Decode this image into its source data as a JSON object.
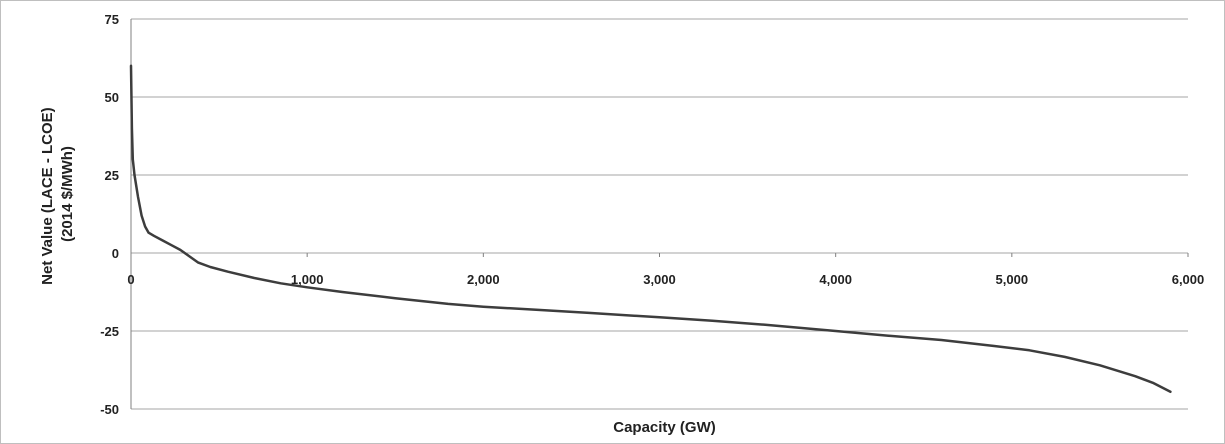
{
  "chart_data": {
    "type": "line",
    "xlabel": "Capacity (GW)",
    "ylabel_lines": [
      "Net Value  (LACE - LCOE)",
      "(2014 $/MWh)"
    ],
    "xlim": [
      0,
      6000
    ],
    "ylim": [
      -50,
      75
    ],
    "x_ticks": [
      0,
      1000,
      2000,
      3000,
      4000,
      5000,
      6000
    ],
    "x_tick_labels": [
      "0",
      "1,000",
      "2,000",
      "3,000",
      "4,000",
      "5,000",
      "6,000"
    ],
    "y_ticks": [
      -50,
      -25,
      0,
      25,
      50,
      75
    ],
    "y_tick_labels": [
      "-50",
      "-25",
      "0",
      "25",
      "50",
      "75"
    ],
    "grid": true,
    "legend": "none",
    "series": [
      {
        "color": "#3d3d3d",
        "points": [
          [
            0,
            60
          ],
          [
            5,
            40
          ],
          [
            10,
            30
          ],
          [
            20,
            25
          ],
          [
            40,
            18
          ],
          [
            60,
            12
          ],
          [
            80,
            8.5
          ],
          [
            100,
            6.5
          ],
          [
            130,
            5.5
          ],
          [
            180,
            4
          ],
          [
            230,
            2.5
          ],
          [
            280,
            1
          ],
          [
            330,
            -1
          ],
          [
            380,
            -3
          ],
          [
            450,
            -4.5
          ],
          [
            550,
            -6
          ],
          [
            700,
            -8
          ],
          [
            850,
            -9.7
          ],
          [
            1000,
            -11
          ],
          [
            1200,
            -12.5
          ],
          [
            1500,
            -14.5
          ],
          [
            1800,
            -16.3
          ],
          [
            2000,
            -17.2
          ],
          [
            2300,
            -18.2
          ],
          [
            2600,
            -19.2
          ],
          [
            3000,
            -20.6
          ],
          [
            3300,
            -21.7
          ],
          [
            3600,
            -23
          ],
          [
            4000,
            -25
          ],
          [
            4300,
            -26.5
          ],
          [
            4600,
            -27.9
          ],
          [
            4900,
            -29.8
          ],
          [
            5100,
            -31.2
          ],
          [
            5300,
            -33.3
          ],
          [
            5500,
            -36
          ],
          [
            5700,
            -39.5
          ],
          [
            5800,
            -41.6
          ],
          [
            5900,
            -44.5
          ]
        ]
      }
    ]
  }
}
